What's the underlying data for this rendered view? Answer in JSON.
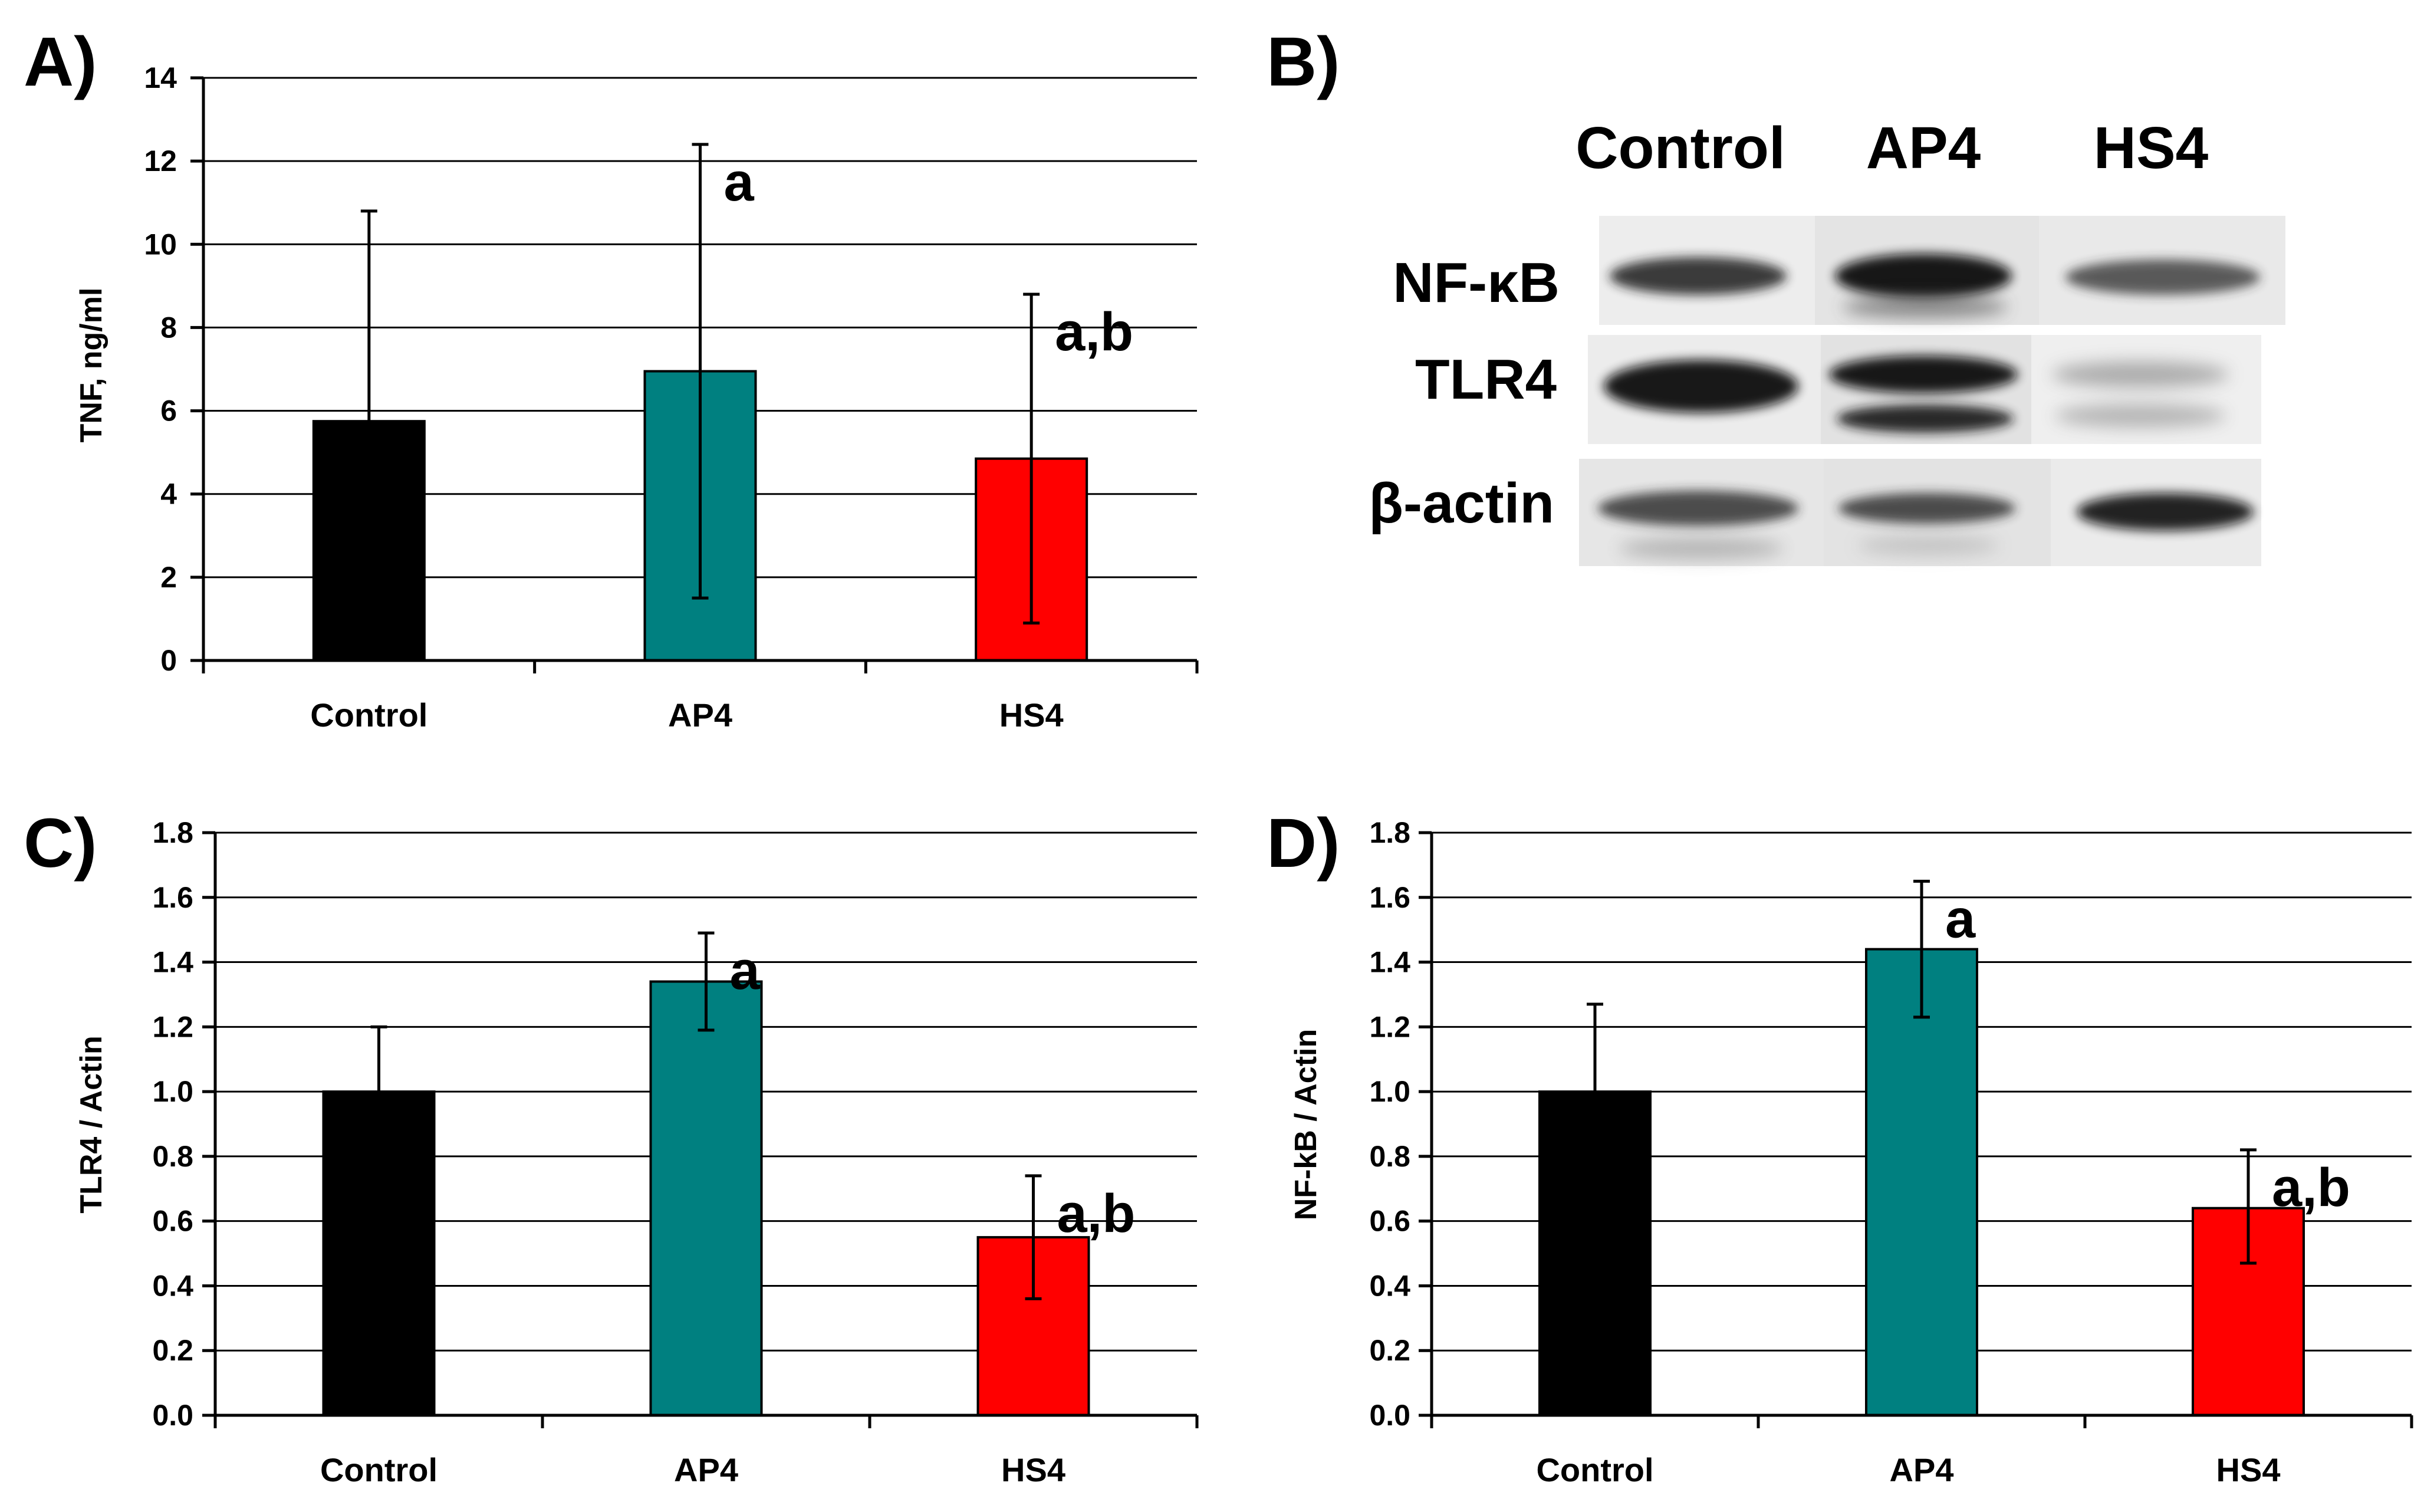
{
  "colors": {
    "Control": "#000000",
    "AP4": "#008080",
    "HS4": "#ff0000",
    "grid": "#000000",
    "background": "#ffffff"
  },
  "chart_data": [
    {
      "id": "A",
      "panel_label": "A)",
      "type": "bar",
      "categories": [
        "Control",
        "AP4",
        "HS4"
      ],
      "values": [
        5.75,
        6.95,
        4.85
      ],
      "error_high": [
        10.8,
        12.4,
        8.8
      ],
      "error_low": [
        5.75,
        1.5,
        0.9
      ],
      "annotations": [
        "",
        "a",
        "a,b"
      ],
      "ylabel": "TNF, ng/ml",
      "xlabel": "",
      "ylim": [
        0,
        14
      ],
      "yticks": [
        "0",
        "2",
        "4",
        "6",
        "8",
        "10",
        "12",
        "14"
      ],
      "grid": true
    },
    {
      "id": "C",
      "panel_label": "C)",
      "type": "bar",
      "categories": [
        "Control",
        "AP4",
        "HS4"
      ],
      "values": [
        1.0,
        1.34,
        0.55
      ],
      "error_high": [
        1.2,
        1.49,
        0.74
      ],
      "error_low": [
        1.0,
        1.19,
        0.36
      ],
      "annotations": [
        "",
        "a",
        "a,b"
      ],
      "ylabel": "TLR4 / Actin",
      "xlabel": "",
      "ylim": [
        0,
        1.8
      ],
      "yticks": [
        "0.0",
        "0.2",
        "0.4",
        "0.6",
        "0.8",
        "1.0",
        "1.2",
        "1.4",
        "1.6",
        "1.8"
      ],
      "grid": true
    },
    {
      "id": "D",
      "panel_label": "D)",
      "type": "bar",
      "categories": [
        "Control",
        "AP4",
        "HS4"
      ],
      "values": [
        1.0,
        1.44,
        0.64
      ],
      "error_high": [
        1.27,
        1.65,
        0.82
      ],
      "error_low": [
        1.0,
        1.23,
        0.47
      ],
      "annotations": [
        "",
        "a",
        "a,b"
      ],
      "ylabel": "NF-kB / Actin",
      "xlabel": "",
      "ylim": [
        0,
        1.8
      ],
      "yticks": [
        "0.0",
        "0.2",
        "0.4",
        "0.6",
        "0.8",
        "1.0",
        "1.2",
        "1.4",
        "1.6",
        "1.8"
      ],
      "grid": true
    }
  ],
  "western_blot": {
    "panel_label": "B)",
    "lanes": [
      "Control",
      "AP4",
      "HS4"
    ],
    "rows": [
      {
        "label": "NF-κB",
        "band_intensity": [
          0.85,
          1.0,
          0.7
        ]
      },
      {
        "label": "TLR4",
        "band_intensity": [
          0.95,
          1.0,
          0.35
        ]
      },
      {
        "label": "β-actin",
        "band_intensity": [
          0.75,
          0.75,
          0.85
        ]
      }
    ]
  }
}
